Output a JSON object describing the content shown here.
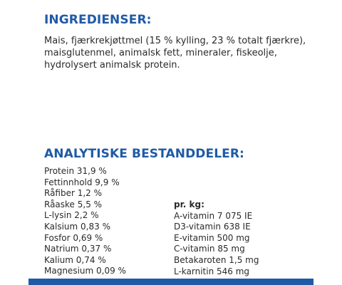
{
  "ingredients": {
    "heading": "INGREDIENSER:",
    "text": "Mais, fjærkrekjøttmel (15 % kylling, 23 % totalt fjærkre), maisglutenmel, animalsk fett, mineraler, fiskeolje, hydrolysert animalsk protein."
  },
  "analytical": {
    "heading": "ANALYTISKE BESTANDDELER:",
    "nutrients": [
      "Protein 31,9 %",
      "Fettinnhold 9,9 %",
      "Råfiber 1,2 %",
      "Råaske 5,5 %",
      "L-lysin 2,2 %",
      "Kalsium 0,83 %",
      "Fosfor 0,69 %",
      "Natrium 0,37 %",
      "Kalium 0,74 %",
      "Magnesium 0,09 %"
    ],
    "per_kg": {
      "label": "pr. kg:",
      "items": [
        "A-vitamin 7 075 IE",
        "D3-vitamin 638 IE",
        "E-vitamin 500 mg",
        "C-vitamin 85 mg",
        "Betakaroten 1,5 mg",
        "L-karnitin 546 mg"
      ]
    }
  },
  "colors": {
    "accent": "#1f5aa6",
    "text": "#2a2a2a",
    "background": "#ffffff"
  }
}
